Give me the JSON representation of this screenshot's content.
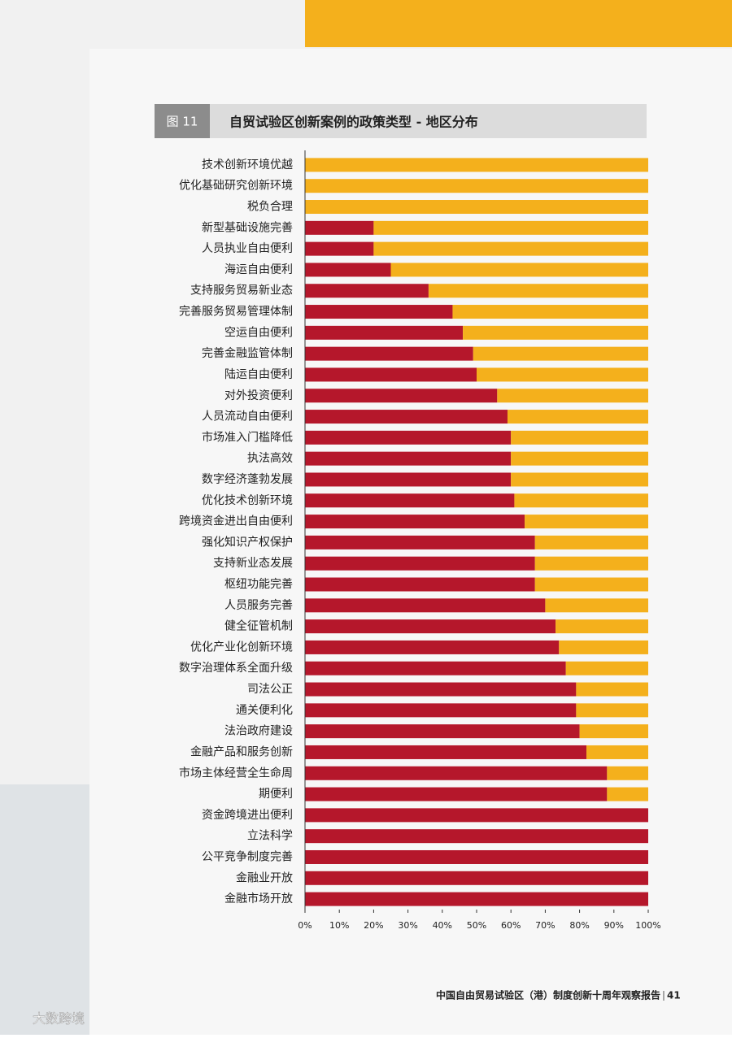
{
  "header": {
    "figure_label": "图 11"
  },
  "chart_data": {
    "type": "stacked-barh",
    "title": "自贸试验区创新案例的政策类型 - 地区分布",
    "categories": [
      "技术创新环境优越",
      "优化基础研究创新环境",
      "税负合理",
      "新型基础设施完善",
      "人员执业自由便利",
      "海运自由便利",
      "支持服务贸易新业态",
      "完善服务贸易管理体制",
      "空运自由便利",
      "完善金融监管体制",
      "陆运自由便利",
      "对外投资便利",
      "人员流动自由便利",
      "市场准入门槛降低",
      "执法高效",
      "数字经济蓬勃发展",
      "优化技术创新环境",
      "跨境资金进出自由便利",
      "强化知识产权保护",
      "支持新业态发展",
      "枢纽功能完善",
      "人员服务完善",
      "健全征管机制",
      "优化产业化创新环境",
      "数字治理体系全面升级",
      "司法公正",
      "通关便利化",
      "法治政府建设",
      "金融产品和服务创新",
      "市场主体经营全生命周",
      "期便利",
      "资金跨境进出便利",
      "立法科学",
      "公平竞争制度完善",
      "金融业开放",
      "金融市场开放"
    ],
    "series": [
      {
        "color": "#b5172b",
        "values": [
          0,
          0,
          0,
          20,
          20,
          25,
          36,
          43,
          46,
          49,
          50,
          56,
          59,
          60,
          60,
          60,
          61,
          64,
          67,
          67,
          67,
          70,
          73,
          74,
          76,
          79,
          79,
          80,
          82,
          88,
          88,
          100,
          100,
          100,
          100,
          100
        ]
      },
      {
        "color": "#f4b01c",
        "values": [
          100,
          100,
          100,
          80,
          80,
          75,
          64,
          57,
          54,
          51,
          50,
          44,
          41,
          40,
          40,
          40,
          39,
          36,
          33,
          33,
          33,
          30,
          27,
          26,
          24,
          21,
          21,
          20,
          18,
          12,
          12,
          0,
          0,
          0,
          0,
          0
        ]
      }
    ],
    "xlim": [
      0,
      100
    ],
    "xticks": [
      {
        "value": 0,
        "label": "0%"
      },
      {
        "value": 10,
        "label": "10%"
      },
      {
        "value": 20,
        "label": "20%"
      },
      {
        "value": 30,
        "label": "30%"
      },
      {
        "value": 40,
        "label": "40%"
      },
      {
        "value": 50,
        "label": "50%"
      },
      {
        "value": 60,
        "label": "60%"
      },
      {
        "value": 70,
        "label": "70%"
      },
      {
        "value": 80,
        "label": "80%"
      },
      {
        "value": 90,
        "label": "90%"
      },
      {
        "value": 100,
        "label": "100%"
      }
    ]
  },
  "footer": {
    "report": "中国自由贸易试验区（港）制度创新十周年观察报告",
    "page": "41",
    "watermark": "大数跨境"
  }
}
